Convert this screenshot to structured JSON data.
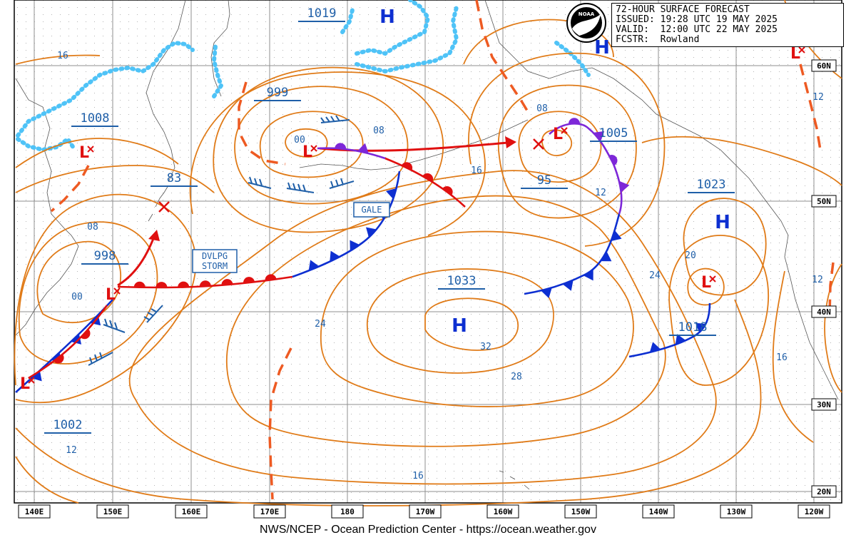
{
  "header": {
    "title": "72-HOUR SURFACE FORECAST",
    "issued": "ISSUED: 19:28 UTC 19 MAY 2025",
    "valid": "VALID:  12:00 UTC 22 MAY 2025",
    "forecaster": "FCSTR:  Rowland"
  },
  "logo_text": "NOAA",
  "footer": "NWS/NCEP - Ocean Prediction Center - https://ocean.weather.gov",
  "lon_labels": [
    "140E",
    "150E",
    "160E",
    "170E",
    "180",
    "170W",
    "160W",
    "150W",
    "140W",
    "130W",
    "120W"
  ],
  "lat_labels": [
    "60N",
    "50N",
    "40N",
    "30N",
    "20N"
  ],
  "highs": [
    {
      "label": "H",
      "pressure": "1019"
    },
    {
      "label": "H",
      "pressure": ""
    },
    {
      "label": "H",
      "pressure": "1033"
    },
    {
      "label": "H",
      "pressure": "1023"
    }
  ],
  "lows": [
    {
      "label": "L",
      "pressure": "1008"
    },
    {
      "label": "L",
      "pressure": "998"
    },
    {
      "label": "L",
      "pressure": "1002"
    },
    {
      "label": "L",
      "pressure": "999"
    },
    {
      "label": "L",
      "pressure": "1005"
    },
    {
      "label": "L",
      "pressure": "1018"
    },
    {
      "label": "L",
      "pressure": ""
    }
  ],
  "other_centers": [
    {
      "pressure": "83"
    },
    {
      "pressure": "95"
    }
  ],
  "warning_tags": [
    "GALE",
    "DVLPG\nSTORM"
  ],
  "isobar_labels": [
    "16",
    "08",
    "00",
    "08",
    "16",
    "08",
    "12",
    "20",
    "24",
    "12",
    "24",
    "32",
    "28",
    "16",
    "12",
    "16",
    "12",
    "00"
  ],
  "colors": {
    "isobar": "#e07b18",
    "warm_front": "#e01010",
    "cold_front": "#0d2fd1",
    "occluded_front": "#7d27d8",
    "trough": "#ee5a22",
    "ice_edge": "#4fc3f7",
    "label": "#1f5fa8",
    "grid": "#8f8f8f"
  }
}
